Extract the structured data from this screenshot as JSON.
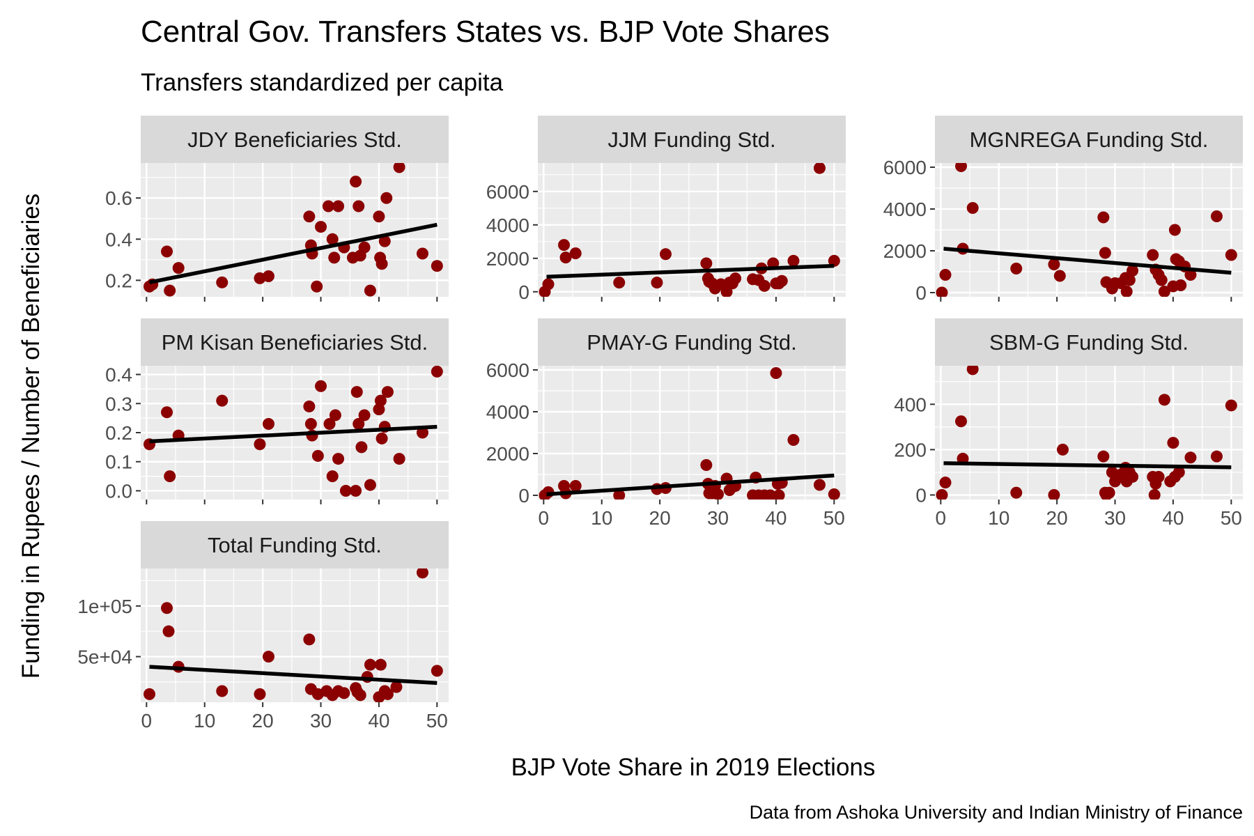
{
  "chart_data": {
    "type": "scatter",
    "title": "Central Gov. Transfers States vs. BJP Vote Shares",
    "subtitle": "Transfers standardized per capita",
    "xlabel": "BJP Vote Share in 2019 Elections",
    "ylabel": "Funding in Rupees / Number of Beneficiaries",
    "caption": "Data from Ashoka University and Indian Ministry of Finance",
    "x_ticks": [
      0,
      10,
      20,
      30,
      40,
      50
    ],
    "grid": true,
    "point_color": "#8B0000",
    "line_color": "#000000",
    "panel_background": "#EBEBEB",
    "strip_background": "#D9D9D9",
    "panels": [
      {
        "title": "JDY Beneficiaries Std.",
        "xlim": [
          -1,
          52
        ],
        "ylim": [
          0.12,
          0.77
        ],
        "y_ticks": [
          0.2,
          0.4,
          0.6
        ],
        "y_tick_labels": [
          "0.2",
          "0.4",
          "0.6"
        ],
        "fit": {
          "x": [
            0.5,
            50
          ],
          "y": [
            0.19,
            0.47
          ]
        },
        "points": [
          [
            0.5,
            0.17
          ],
          [
            1,
            0.18
          ],
          [
            3.5,
            0.34
          ],
          [
            4,
            0.15
          ],
          [
            5.5,
            0.26
          ],
          [
            13,
            0.19
          ],
          [
            19.5,
            0.21
          ],
          [
            21,
            0.22
          ],
          [
            28,
            0.51
          ],
          [
            28.3,
            0.37
          ],
          [
            28.5,
            0.33
          ],
          [
            29.3,
            0.17
          ],
          [
            30,
            0.46
          ],
          [
            31.3,
            0.56
          ],
          [
            32,
            0.4
          ],
          [
            32.3,
            0.31
          ],
          [
            33,
            0.56
          ],
          [
            34,
            0.36
          ],
          [
            35.5,
            0.31
          ],
          [
            36,
            0.68
          ],
          [
            36.5,
            0.56
          ],
          [
            36.8,
            0.32
          ],
          [
            37.5,
            0.36
          ],
          [
            38.5,
            0.15
          ],
          [
            40,
            0.51
          ],
          [
            40.2,
            0.31
          ],
          [
            40.5,
            0.28
          ],
          [
            41,
            0.39
          ],
          [
            41.3,
            0.6
          ],
          [
            43.5,
            0.75
          ],
          [
            47.5,
            0.33
          ],
          [
            50,
            0.27
          ]
        ]
      },
      {
        "title": "JJM Funding Std.",
        "xlim": [
          -1,
          52
        ],
        "ylim": [
          -300,
          7700
        ],
        "y_ticks": [
          0,
          2000,
          4000,
          6000
        ],
        "y_tick_labels": [
          "0",
          "2000",
          "4000",
          "6000"
        ],
        "fit": {
          "x": [
            0.5,
            50
          ],
          "y": [
            900,
            1550
          ]
        },
        "points": [
          [
            0.2,
            0
          ],
          [
            0.8,
            450
          ],
          [
            3.5,
            2800
          ],
          [
            3.8,
            2050
          ],
          [
            5.5,
            2300
          ],
          [
            13,
            550
          ],
          [
            19.5,
            550
          ],
          [
            21,
            2250
          ],
          [
            28,
            1700
          ],
          [
            28.3,
            800
          ],
          [
            28.5,
            600
          ],
          [
            29,
            500
          ],
          [
            29.5,
            200
          ],
          [
            30.5,
            450
          ],
          [
            31.5,
            0
          ],
          [
            32,
            550
          ],
          [
            32.5,
            500
          ],
          [
            33,
            800
          ],
          [
            36,
            750
          ],
          [
            37,
            700
          ],
          [
            37.5,
            1400
          ],
          [
            38,
            350
          ],
          [
            39.5,
            1700
          ],
          [
            40,
            500
          ],
          [
            40.5,
            500
          ],
          [
            41,
            650
          ],
          [
            43,
            1850
          ],
          [
            47.5,
            7400
          ],
          [
            50,
            1850
          ]
        ]
      },
      {
        "title": "MGNREGA Funding Std.",
        "xlim": [
          -1,
          52
        ],
        "ylim": [
          -200,
          6200
        ],
        "y_ticks": [
          0,
          2000,
          4000,
          6000
        ],
        "y_tick_labels": [
          "0",
          "2000",
          "4000",
          "6000"
        ],
        "fit": {
          "x": [
            0.5,
            50
          ],
          "y": [
            2100,
            950
          ]
        },
        "points": [
          [
            0.2,
            0
          ],
          [
            0.8,
            850
          ],
          [
            3.5,
            6050
          ],
          [
            3.8,
            2100
          ],
          [
            5.5,
            4050
          ],
          [
            13,
            1150
          ],
          [
            19.5,
            1350
          ],
          [
            20.5,
            800
          ],
          [
            28,
            3600
          ],
          [
            28.3,
            1900
          ],
          [
            28.5,
            500
          ],
          [
            29.5,
            200
          ],
          [
            30,
            450
          ],
          [
            31,
            450
          ],
          [
            31.8,
            700
          ],
          [
            32,
            50
          ],
          [
            32.5,
            600
          ],
          [
            33,
            1050
          ],
          [
            36.5,
            1800
          ],
          [
            37,
            1100
          ],
          [
            37.5,
            850
          ],
          [
            38,
            600
          ],
          [
            38.5,
            50
          ],
          [
            40,
            300
          ],
          [
            40.3,
            3000
          ],
          [
            40.5,
            1600
          ],
          [
            41,
            1500
          ],
          [
            41.3,
            350
          ],
          [
            42,
            1250
          ],
          [
            43,
            850
          ],
          [
            47.5,
            3650
          ],
          [
            50,
            1800
          ]
        ]
      },
      {
        "title": "PM Kisan Beneficiaries Std.",
        "xlim": [
          -1,
          52
        ],
        "ylim": [
          -0.03,
          0.43
        ],
        "y_ticks": [
          0,
          0.1,
          0.2,
          0.3,
          0.4
        ],
        "y_tick_labels": [
          "0.0",
          "0.1",
          "0.2",
          "0.3",
          "0.4"
        ],
        "fit": {
          "x": [
            0.5,
            50
          ],
          "y": [
            0.17,
            0.22
          ]
        },
        "points": [
          [
            0.5,
            0.16
          ],
          [
            3.5,
            0.27
          ],
          [
            4,
            0.05
          ],
          [
            5.5,
            0.19
          ],
          [
            13,
            0.31
          ],
          [
            19.5,
            0.16
          ],
          [
            21,
            0.23
          ],
          [
            28,
            0.29
          ],
          [
            28.3,
            0.23
          ],
          [
            28.5,
            0.19
          ],
          [
            29.5,
            0.12
          ],
          [
            30,
            0.36
          ],
          [
            31.5,
            0.23
          ],
          [
            32,
            0.05
          ],
          [
            32.5,
            0.26
          ],
          [
            33,
            0.11
          ],
          [
            34.3,
            0
          ],
          [
            36,
            0
          ],
          [
            36.2,
            0.34
          ],
          [
            36.5,
            0.23
          ],
          [
            37,
            0.15
          ],
          [
            37.5,
            0.26
          ],
          [
            38.5,
            0.02
          ],
          [
            40,
            0.28
          ],
          [
            40.3,
            0.31
          ],
          [
            40.5,
            0.18
          ],
          [
            41,
            0.22
          ],
          [
            41.5,
            0.34
          ],
          [
            43.5,
            0.11
          ],
          [
            47.5,
            0.2
          ],
          [
            50,
            0.41
          ]
        ]
      },
      {
        "title": "PMAY-G Funding Std.",
        "xlim": [
          -1,
          52
        ],
        "ylim": [
          -200,
          6200
        ],
        "y_ticks": [
          0,
          2000,
          4000,
          6000
        ],
        "y_tick_labels": [
          "0",
          "2000",
          "4000",
          "6000"
        ],
        "fit": {
          "x": [
            0.5,
            50
          ],
          "y": [
            50,
            950
          ]
        },
        "points": [
          [
            0.2,
            0
          ],
          [
            0.8,
            150
          ],
          [
            3.5,
            450
          ],
          [
            3.8,
            100
          ],
          [
            5.5,
            450
          ],
          [
            13,
            0
          ],
          [
            19.5,
            300
          ],
          [
            21,
            350
          ],
          [
            28,
            1450
          ],
          [
            28.3,
            550
          ],
          [
            28.5,
            100
          ],
          [
            29,
            100
          ],
          [
            29.5,
            450
          ],
          [
            30,
            50
          ],
          [
            31.5,
            800
          ],
          [
            32,
            250
          ],
          [
            32.5,
            400
          ],
          [
            33,
            450
          ],
          [
            36,
            0
          ],
          [
            36.5,
            850
          ],
          [
            37,
            0
          ],
          [
            38,
            0
          ],
          [
            39,
            0
          ],
          [
            40,
            5850
          ],
          [
            40.3,
            550
          ],
          [
            40.5,
            0
          ],
          [
            41,
            600
          ],
          [
            43,
            2650
          ],
          [
            47.5,
            500
          ],
          [
            50,
            50
          ]
        ]
      },
      {
        "title": "SBM-G Funding Std.",
        "xlim": [
          -1,
          52
        ],
        "ylim": [
          -20,
          570
        ],
        "y_ticks": [
          0,
          200,
          400
        ],
        "y_tick_labels": [
          "0",
          "200",
          "400"
        ],
        "fit": {
          "x": [
            0.5,
            50
          ],
          "y": [
            140,
            122
          ]
        },
        "points": [
          [
            0.2,
            0
          ],
          [
            0.8,
            55
          ],
          [
            3.5,
            325
          ],
          [
            3.8,
            160
          ],
          [
            5.5,
            555
          ],
          [
            13,
            10
          ],
          [
            19.5,
            0
          ],
          [
            21,
            200
          ],
          [
            28,
            170
          ],
          [
            28.3,
            10
          ],
          [
            28.5,
            0
          ],
          [
            29,
            10
          ],
          [
            29.5,
            100
          ],
          [
            30,
            60
          ],
          [
            31,
            90
          ],
          [
            31.8,
            120
          ],
          [
            32,
            60
          ],
          [
            32.5,
            100
          ],
          [
            33,
            80
          ],
          [
            36.5,
            80
          ],
          [
            36.8,
            0
          ],
          [
            37,
            50
          ],
          [
            37.5,
            80
          ],
          [
            38.5,
            420
          ],
          [
            39.5,
            60
          ],
          [
            40,
            230
          ],
          [
            40.3,
            80
          ],
          [
            41,
            100
          ],
          [
            43,
            165
          ],
          [
            47.5,
            170
          ],
          [
            50,
            395
          ]
        ]
      },
      {
        "title": "Total Funding Std.",
        "xlim": [
          -1,
          52
        ],
        "ylim": [
          5000,
          137000
        ],
        "y_ticks": [
          50000,
          100000
        ],
        "y_tick_labels": [
          "5e+04",
          "1e+05"
        ],
        "fit": {
          "x": [
            0.5,
            50
          ],
          "y": [
            40000,
            24000
          ]
        },
        "points": [
          [
            0.5,
            13000
          ],
          [
            3.5,
            98000
          ],
          [
            3.8,
            75000
          ],
          [
            5.5,
            40000
          ],
          [
            13,
            16000
          ],
          [
            19.5,
            13000
          ],
          [
            21,
            50000
          ],
          [
            28,
            67000
          ],
          [
            28.3,
            18000
          ],
          [
            29.5,
            13000
          ],
          [
            31,
            16000
          ],
          [
            32,
            12000
          ],
          [
            33,
            16000
          ],
          [
            34,
            14000
          ],
          [
            36,
            19000
          ],
          [
            36.3,
            15000
          ],
          [
            36.8,
            12000
          ],
          [
            38,
            30000
          ],
          [
            38.5,
            42000
          ],
          [
            40,
            10000
          ],
          [
            40.3,
            42000
          ],
          [
            41,
            16000
          ],
          [
            41.5,
            13000
          ],
          [
            43,
            20000
          ],
          [
            47.5,
            133000
          ],
          [
            50,
            36000
          ]
        ]
      }
    ]
  }
}
